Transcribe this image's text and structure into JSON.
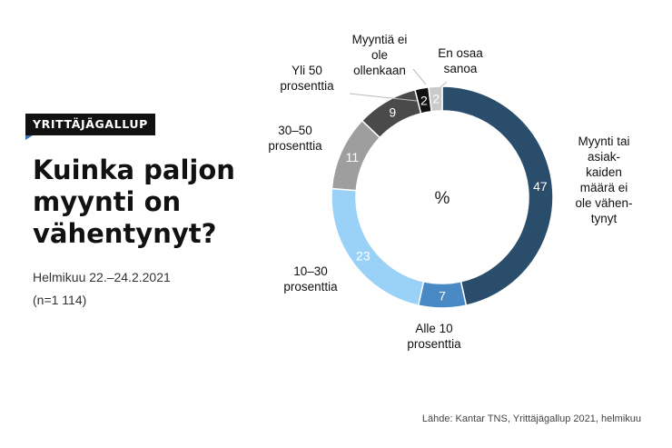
{
  "badge": "YRITTÄJÄGALLUP",
  "title": "Kuinka paljon myynti on vähentynyt?",
  "date": "Helmikuu 22.–24.2.2021",
  "n": "(n=1 114)",
  "source": "Lähde: Kantar TNS, Yrittäjägallup 2021, helmikuu",
  "chart_data": {
    "type": "pie",
    "donut": true,
    "center_label": "%",
    "unit": "%",
    "slices": [
      {
        "label": "Myynti tai asiak-kaiden määrä ei ole vähen-tynyt",
        "lines": [
          "Myynti tai",
          "asiak-",
          "kaiden",
          "määrä ei",
          "ole vähen-",
          "tynyt"
        ],
        "value": 47,
        "color": "#2b4d6c",
        "value_color": "#ffffff"
      },
      {
        "label": "Alle 10 prosenttia",
        "lines": [
          "Alle 10",
          "prosenttia"
        ],
        "value": 7,
        "color": "#4a8ac4",
        "value_color": "#ffffff"
      },
      {
        "label": "10–30 prosenttia",
        "lines": [
          "10–30",
          "prosenttia"
        ],
        "value": 23,
        "color": "#9ad2f7",
        "value_color": "#ffffff"
      },
      {
        "label": "30–50 prosenttia",
        "lines": [
          "30–50",
          "prosenttia"
        ],
        "value": 11,
        "color": "#9e9e9e",
        "value_color": "#ffffff"
      },
      {
        "label": "Yli 50 prosenttia",
        "lines": [
          "Yli 50",
          "prosenttia"
        ],
        "value": 9,
        "color": "#4a4a4a",
        "value_color": "#ffffff"
      },
      {
        "label": "Myyntiä ei ole ollenkaan",
        "lines": [
          "Myyntiä ei",
          "ole",
          "ollenkaan"
        ],
        "value": 2,
        "color": "#111111",
        "value_color": "#ffffff"
      },
      {
        "label": "En osaa sanoa",
        "lines": [
          "En osaa",
          "sanoa"
        ],
        "value": 2,
        "color": "#c9c9c9",
        "value_color": "#ffffff",
        "label_color": "#888888"
      }
    ]
  }
}
